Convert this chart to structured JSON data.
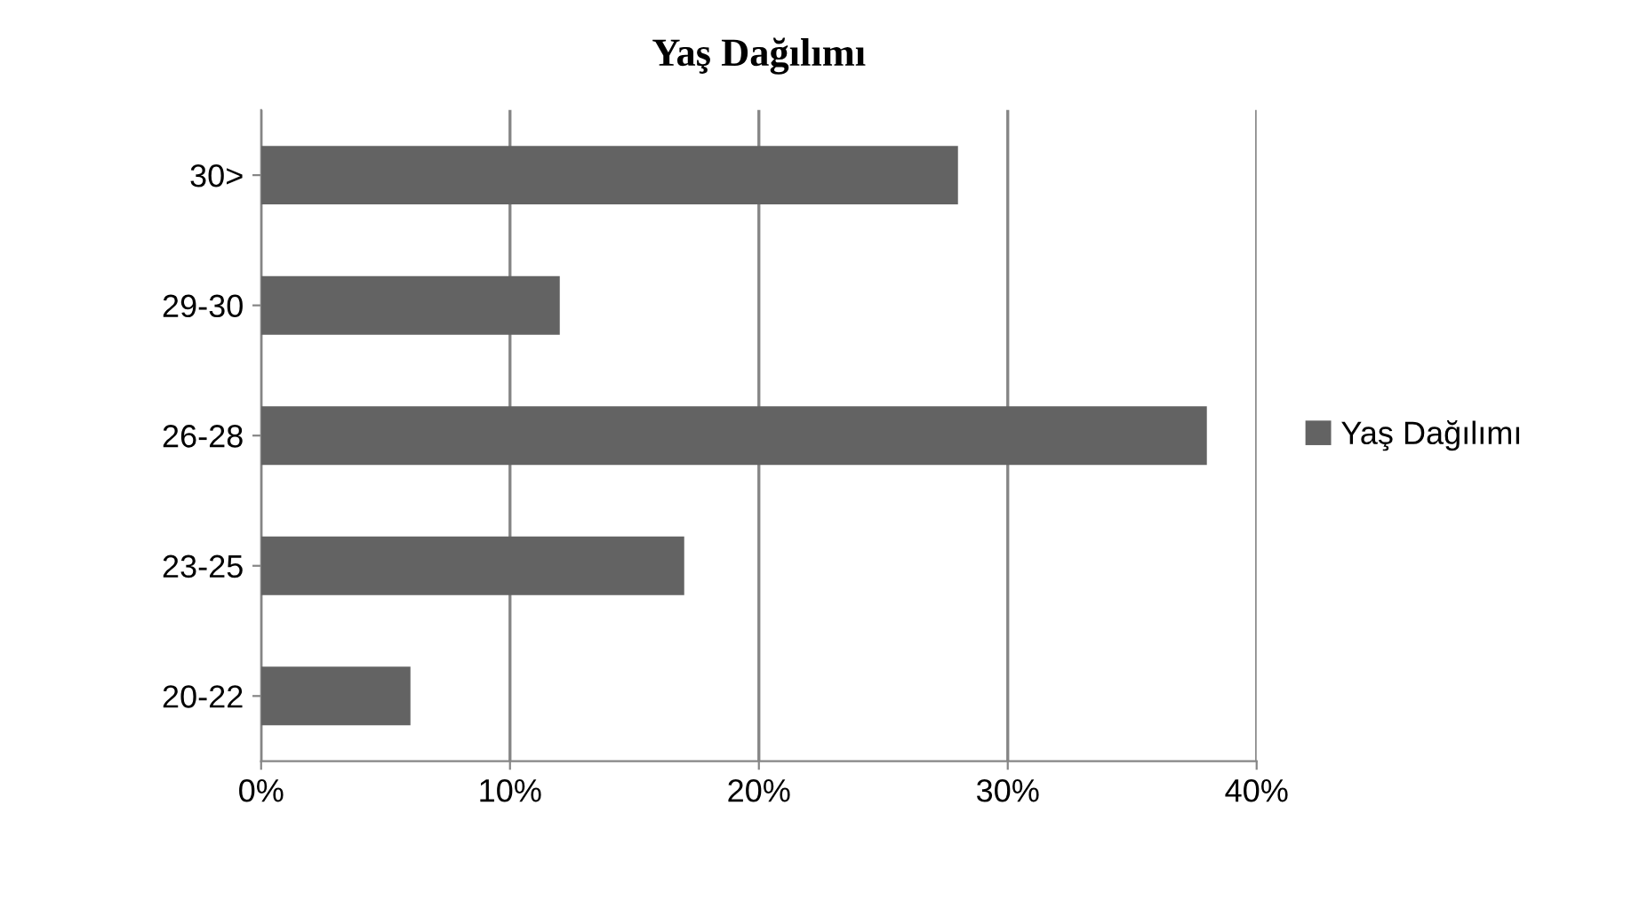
{
  "chart_data": {
    "type": "bar",
    "orientation": "horizontal",
    "title": "Yaş Dağılımı",
    "categories": [
      "30>",
      "29-30",
      "26-28",
      "23-25",
      "20-22"
    ],
    "series": [
      {
        "name": "Yaş Dağılımı",
        "color": "#636363",
        "values": [
          28,
          12,
          38,
          17,
          6
        ]
      }
    ],
    "xlim": [
      0,
      40
    ],
    "xticks": [
      {
        "value": 0,
        "label": "0%"
      },
      {
        "value": 10,
        "label": "10%"
      },
      {
        "value": 20,
        "label": "20%"
      },
      {
        "value": 30,
        "label": "30%"
      },
      {
        "value": 40,
        "label": "40%"
      }
    ],
    "grid": "x",
    "legend": "right"
  }
}
